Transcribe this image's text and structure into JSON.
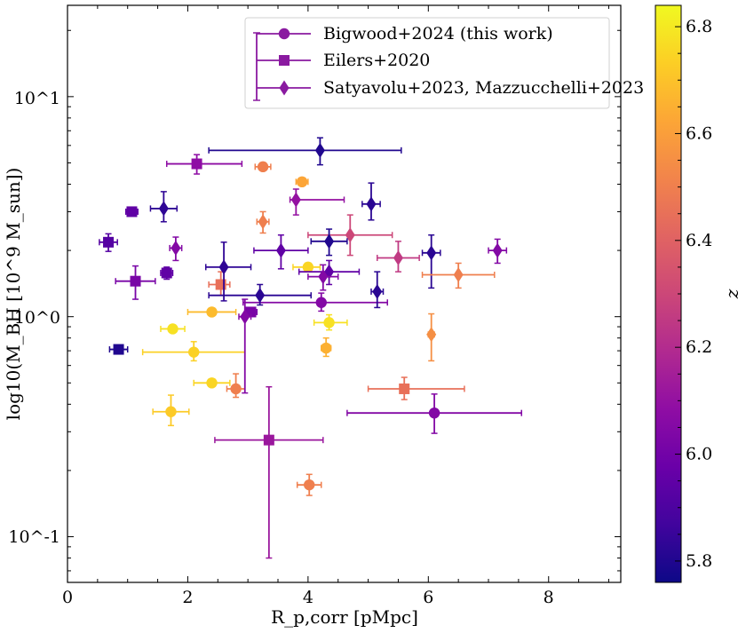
{
  "chart_data": {
    "type": "scatter",
    "title": "",
    "xlabel": "R_p,corr [pMpc]",
    "ylabel": "log10(M_BH [10^9 M_sun])",
    "xlim": [
      0,
      9.2
    ],
    "ylim": [
      0.062,
      26
    ],
    "yscale": "log",
    "x_ticks": [
      "0",
      "2",
      "4",
      "6",
      "8"
    ],
    "y_ticks": [
      "10^-1",
      "10^0",
      "10^1"
    ],
    "legend": {
      "placement": "top-center",
      "entries": [
        {
          "label": "Bigwood+2024 (this work)",
          "marker": "circle"
        },
        {
          "label": "Eilers+2020",
          "marker": "square"
        },
        {
          "label": "Satyavolu+2023, Mazzucchelli+2023",
          "marker": "diamond"
        }
      ],
      "errorbar_color": "#8a1aa0"
    },
    "colorbar": {
      "label": "z",
      "vmin": 5.76,
      "vmax": 6.84,
      "colormap": "plasma",
      "ticks": [
        "5.8",
        "6.0",
        "6.2",
        "6.4",
        "6.6",
        "6.8"
      ]
    },
    "series": [
      {
        "name": "Bigwood+2024 (this work)",
        "marker": "circle",
        "points": [
          {
            "x": 3.25,
            "y": 4.8,
            "z": 6.5,
            "xerr": [
              0.13,
              0.13
            ]
          },
          {
            "x": 3.9,
            "y": 4.1,
            "z": 6.62,
            "xerr": [
              0.1,
              0.1
            ]
          },
          {
            "x": 4.0,
            "y": 1.68,
            "z": 6.75,
            "xerr": [
              0.25,
              0.2
            ]
          },
          {
            "x": 4.22,
            "y": 1.16,
            "z": 6.05,
            "xerr": [
              1.3,
              1.1
            ],
            "yerr": [
              0.1,
              0.12
            ]
          },
          {
            "x": 2.4,
            "y": 1.05,
            "z": 6.68,
            "xerr": [
              0.4,
              0.4
            ]
          },
          {
            "x": 1.75,
            "y": 0.88,
            "z": 6.78,
            "xerr": [
              0.2,
              0.2
            ]
          },
          {
            "x": 2.1,
            "y": 0.69,
            "z": 6.74,
            "xerr": [
              0.85,
              0.85
            ],
            "yerr": [
              0.06,
              0.08
            ]
          },
          {
            "x": 2.4,
            "y": 0.5,
            "z": 6.75,
            "xerr": [
              0.3,
              0.3
            ]
          },
          {
            "x": 2.8,
            "y": 0.47,
            "z": 6.5,
            "xerr": [
              0.15,
              0.15
            ],
            "yerr": [
              0.04,
              0.08
            ]
          },
          {
            "x": 1.72,
            "y": 0.37,
            "z": 6.72,
            "xerr": [
              0.3,
              0.3
            ],
            "yerr": [
              0.05,
              0.07
            ]
          },
          {
            "x": 4.35,
            "y": 0.94,
            "z": 6.78,
            "xerr": [
              0.25,
              0.3
            ],
            "yerr": [
              0.07,
              0.08
            ]
          },
          {
            "x": 4.3,
            "y": 0.72,
            "z": 6.65,
            "xerr": [
              0.08,
              0.08
            ],
            "yerr": [
              0.06,
              0.08
            ]
          },
          {
            "x": 6.1,
            "y": 0.365,
            "z": 6.05,
            "xerr": [
              1.45,
              1.45
            ],
            "yerr": [
              0.07,
              0.08
            ]
          },
          {
            "x": 4.02,
            "y": 0.172,
            "z": 6.5,
            "xerr": [
              0.2,
              0.2
            ],
            "yerr": [
              0.018,
              0.02
            ]
          }
        ]
      },
      {
        "name": "Eilers+2020",
        "marker": "square",
        "points": [
          {
            "x": 2.15,
            "y": 4.95,
            "z": 6.08,
            "xerr": [
              0.5,
              0.75
            ],
            "yerr": [
              0.5,
              0.5
            ]
          },
          {
            "x": 1.07,
            "y": 3.0,
            "z": 5.95,
            "xerr": [
              0.1,
              0.1
            ]
          },
          {
            "x": 0.68,
            "y": 2.18,
            "z": 5.92,
            "xerr": [
              0.15,
              0.15
            ],
            "yerr": [
              0.2,
              0.2
            ]
          },
          {
            "x": 1.65,
            "y": 1.58,
            "z": 5.95,
            "xerr": [
              0.1,
              0.1
            ],
            "yerr": [
              0.1,
              0.1
            ]
          },
          {
            "x": 1.13,
            "y": 1.45,
            "z": 6.02,
            "xerr": [
              0.33,
              0.33
            ],
            "yerr": [
              0.25,
              0.25
            ]
          },
          {
            "x": 2.55,
            "y": 1.4,
            "z": 6.45,
            "xerr": [
              0.2,
              0.15
            ],
            "yerr": [
              0.15,
              0.2
            ]
          },
          {
            "x": 3.05,
            "y": 1.05,
            "z": 6.02,
            "xerr": [
              0.1,
              0.1
            ]
          },
          {
            "x": 0.85,
            "y": 0.71,
            "z": 5.8,
            "xerr": [
              0.15,
              0.15
            ]
          },
          {
            "x": 5.6,
            "y": 0.47,
            "z": 6.45,
            "xerr": [
              0.6,
              1.0
            ],
            "yerr": [
              0.05,
              0.06
            ]
          },
          {
            "x": 3.35,
            "y": 0.275,
            "z": 6.12,
            "xerr": [
              0.9,
              0.9
            ],
            "yerr": [
              0.195,
              0.205
            ]
          }
        ]
      },
      {
        "name": "Satyavolu+2023, Mazzucchelli+2023",
        "marker": "diamond",
        "points": [
          {
            "x": 3.15,
            "y": 12.5,
            "z": 6.22,
            "yerr": [
              2.5,
              7.5
            ]
          },
          {
            "x": 4.2,
            "y": 5.7,
            "z": 5.8,
            "xerr": [
              1.85,
              1.35
            ],
            "yerr": [
              0.8,
              0.8
            ]
          },
          {
            "x": 1.6,
            "y": 3.1,
            "z": 5.83,
            "xerr": [
              0.22,
              0.22
            ],
            "yerr": [
              0.4,
              0.6
            ]
          },
          {
            "x": 3.8,
            "y": 3.4,
            "z": 6.1,
            "xerr": [
              0.1,
              0.8
            ],
            "yerr": [
              0.5,
              0.4
            ]
          },
          {
            "x": 5.05,
            "y": 3.25,
            "z": 5.82,
            "xerr": [
              0.15,
              0.15
            ],
            "yerr": [
              0.5,
              0.8
            ]
          },
          {
            "x": 3.25,
            "y": 2.7,
            "z": 6.5,
            "xerr": [
              0.1,
              0.1
            ],
            "yerr": [
              0.3,
              0.3
            ]
          },
          {
            "x": 4.7,
            "y": 2.35,
            "z": 6.3,
            "xerr": [
              0.7,
              0.7
            ],
            "yerr": [
              0.45,
              0.55
            ]
          },
          {
            "x": 1.8,
            "y": 2.05,
            "z": 6.05,
            "xerr": [
              0.1,
              0.1
            ],
            "yerr": [
              0.25,
              0.25
            ]
          },
          {
            "x": 2.6,
            "y": 1.68,
            "z": 5.83,
            "xerr": [
              0.3,
              0.45
            ],
            "yerr": [
              0.5,
              0.5
            ]
          },
          {
            "x": 3.55,
            "y": 2.0,
            "z": 5.95,
            "xerr": [
              0.45,
              0.45
            ],
            "yerr": [
              0.35,
              0.35
            ]
          },
          {
            "x": 4.35,
            "y": 2.2,
            "z": 5.8,
            "xerr": [
              0.3,
              0.3
            ],
            "yerr": [
              0.3,
              0.3
            ]
          },
          {
            "x": 5.5,
            "y": 1.85,
            "z": 6.25,
            "xerr": [
              0.35,
              0.35
            ],
            "yerr": [
              0.25,
              0.35
            ]
          },
          {
            "x": 6.05,
            "y": 1.95,
            "z": 5.82,
            "xerr": [
              0.15,
              0.15
            ],
            "yerr": [
              0.6,
              0.4
            ]
          },
          {
            "x": 7.15,
            "y": 2.0,
            "z": 6.05,
            "xerr": [
              0.15,
              0.15
            ],
            "yerr": [
              0.25,
              0.25
            ]
          },
          {
            "x": 6.5,
            "y": 1.55,
            "z": 6.5,
            "xerr": [
              0.6,
              0.6
            ],
            "yerr": [
              0.2,
              0.2
            ]
          },
          {
            "x": 4.35,
            "y": 1.6,
            "z": 5.95,
            "xerr": [
              0.5,
              0.5
            ],
            "yerr": [
              0.2,
              0.2
            ]
          },
          {
            "x": 4.25,
            "y": 1.52,
            "z": 6.05,
            "xerr": [
              0.25,
              0.25
            ],
            "yerr": [
              0.2,
              0.2
            ]
          },
          {
            "x": 5.15,
            "y": 1.3,
            "z": 5.82,
            "xerr": [
              0.1,
              0.1
            ],
            "yerr": [
              0.2,
              0.3
            ]
          },
          {
            "x": 3.2,
            "y": 1.25,
            "z": 5.82,
            "xerr": [
              0.85,
              0.85
            ],
            "yerr": [
              0.12,
              0.15
            ]
          },
          {
            "x": 2.95,
            "y": 1.0,
            "z": 6.05,
            "xerr": [
              0.1,
              0.1
            ],
            "yerr": [
              0.55,
              0.2
            ]
          },
          {
            "x": 6.05,
            "y": 0.83,
            "z": 6.55,
            "xerr": [
              0.05,
              0.05
            ],
            "yerr": [
              0.2,
              0.2
            ]
          }
        ]
      }
    ]
  }
}
